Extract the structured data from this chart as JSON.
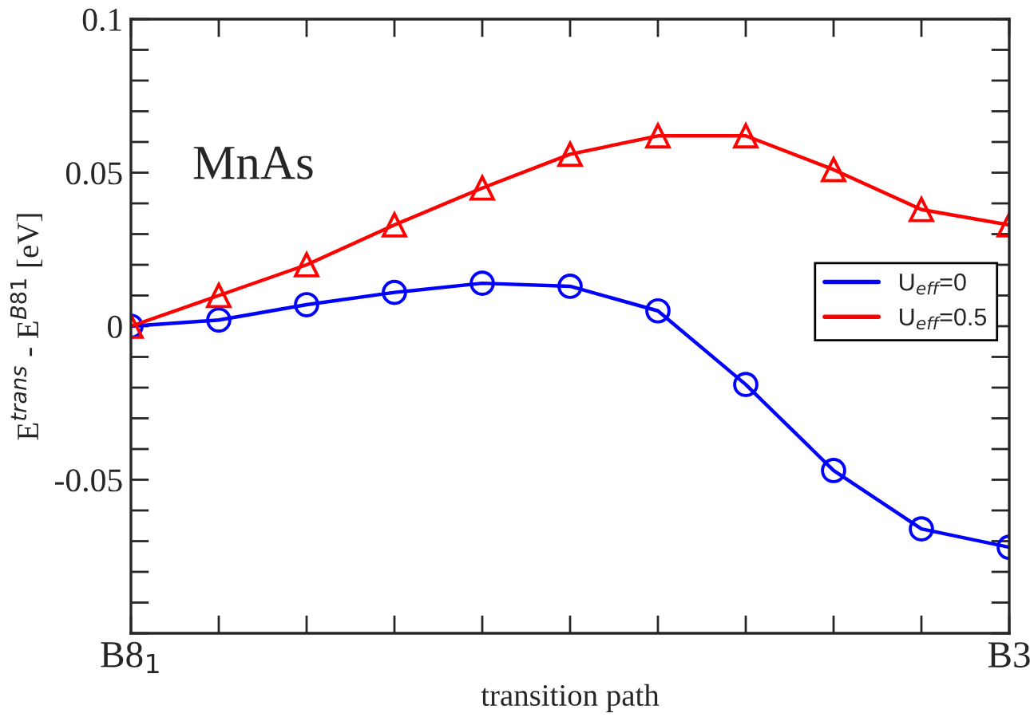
{
  "chart_data": {
    "type": "line",
    "xlabel": "transition path",
    "ylabel": "E$^{trans}$ - E$^{B81}$ [eV]",
    "annotations": [
      "MnAs"
    ],
    "categories": [
      "B8$_{1}$",
      null,
      null,
      null,
      null,
      null,
      null,
      null,
      null,
      null,
      "B3"
    ],
    "ylim": [
      -0.1,
      0.1
    ],
    "yticks": [
      {
        "value": -0.1,
        "label": null
      },
      {
        "value": -0.09,
        "label": null
      },
      {
        "value": -0.08,
        "label": null
      },
      {
        "value": -0.07,
        "label": null
      },
      {
        "value": -0.06,
        "label": null
      },
      -0.05,
      {
        "value": -0.04,
        "label": null
      },
      {
        "value": -0.03,
        "label": null
      },
      {
        "value": -0.02,
        "label": null
      },
      {
        "value": -0.01,
        "label": null
      },
      0,
      {
        "value": 0.01,
        "label": null
      },
      {
        "value": 0.02,
        "label": null
      },
      {
        "value": 0.03,
        "label": null
      },
      {
        "value": 0.04,
        "label": null
      },
      0.05,
      {
        "value": 0.06,
        "label": null
      },
      {
        "value": 0.07,
        "label": null
      },
      {
        "value": 0.08,
        "label": null
      },
      {
        "value": 0.09,
        "label": null
      },
      0.1
    ],
    "grid": false,
    "legend": "right",
    "series": [
      {
        "name": "U$_{eff}$=0",
        "color": "#0000ff",
        "marker": "circle",
        "values": [
          0,
          0.002,
          0.007,
          0.011,
          0.014,
          0.013,
          0.005,
          -0.019,
          -0.047,
          -0.066,
          -0.072
        ]
      },
      {
        "name": "U$_{eff}$=0.5",
        "color": "#ff0000",
        "marker": "triangle",
        "values": [
          0,
          0.01,
          0.02,
          0.033,
          0.045,
          0.056,
          0.062,
          0.062,
          0.051,
          0.038,
          0.033
        ]
      }
    ]
  }
}
